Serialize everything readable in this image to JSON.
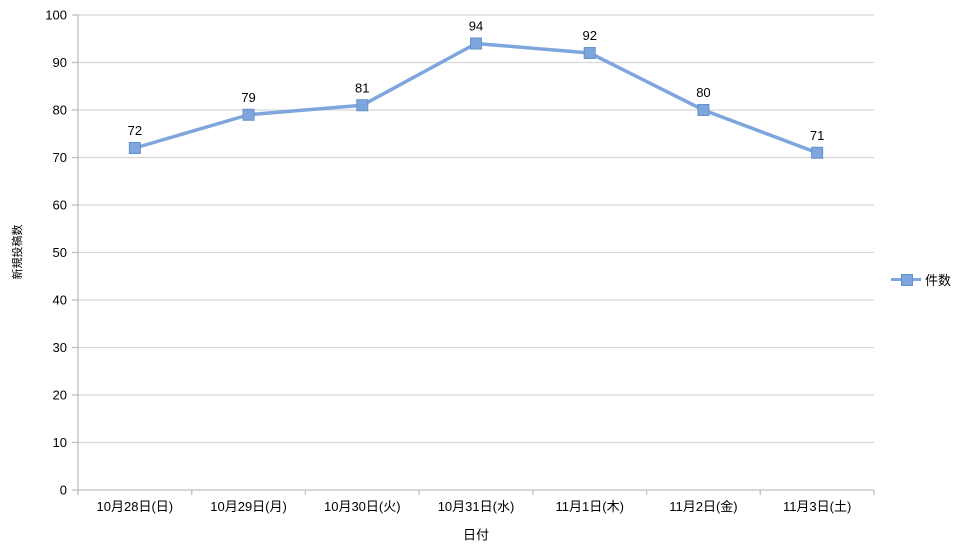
{
  "chart_data": {
    "type": "line",
    "title": "",
    "xlabel": "日付",
    "ylabel": "新規投稿数",
    "categories": [
      "10月28日(日)",
      "10月29日(月)",
      "10月30日(火)",
      "10月31日(水)",
      "11月1日(木)",
      "11月2日(金)",
      "11月3日(土)"
    ],
    "series": [
      {
        "name": "件数",
        "values": [
          72,
          79,
          81,
          94,
          92,
          80,
          71
        ]
      }
    ],
    "ylim": [
      0,
      100
    ],
    "ytick_step": 10,
    "grid": true,
    "legend_position": "right",
    "marker": "square",
    "data_labels": true,
    "colors": {
      "line": "#7EA6DC",
      "marker_fill": "#7EA6DC",
      "marker_border": "#6391CB",
      "grid": "#D6D6D6",
      "axis": "#C0C0C0",
      "text": "#000000"
    }
  }
}
